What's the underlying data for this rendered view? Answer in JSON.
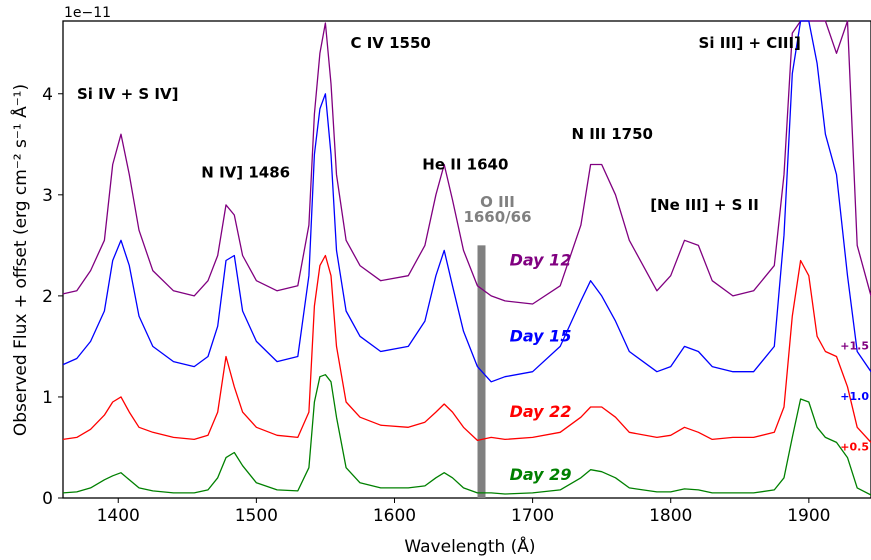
{
  "chart_data": {
    "type": "line",
    "xlabel": "Wavelength (Å)",
    "ylabel": "Observed Flux + offset (erg cm⁻² s⁻¹ Å⁻¹)",
    "y_scale_note": "1e−11",
    "xlim": [
      1360,
      1945
    ],
    "ylim": [
      0,
      4.72
    ],
    "xticks": [
      1400,
      1500,
      1600,
      1700,
      1800,
      1900
    ],
    "yticks": [
      0,
      1,
      2,
      3,
      4
    ],
    "grid": false,
    "series": [
      {
        "name": "Day 12",
        "color": "#800080",
        "offset_label": "+1.5",
        "x": [
          1360,
          1370,
          1380,
          1390,
          1396,
          1402,
          1408,
          1415,
          1425,
          1440,
          1455,
          1465,
          1472,
          1478,
          1484,
          1490,
          1500,
          1515,
          1530,
          1538,
          1542,
          1546,
          1550,
          1554,
          1558,
          1565,
          1575,
          1590,
          1610,
          1622,
          1630,
          1636,
          1642,
          1650,
          1660,
          1670,
          1680,
          1700,
          1720,
          1735,
          1742,
          1750,
          1760,
          1770,
          1790,
          1800,
          1810,
          1820,
          1830,
          1845,
          1860,
          1875,
          1882,
          1888,
          1894,
          1900,
          1906,
          1912,
          1920,
          1928,
          1935,
          1945
        ],
        "y": [
          2.02,
          2.05,
          2.25,
          2.55,
          3.3,
          3.6,
          3.2,
          2.65,
          2.25,
          2.05,
          2.0,
          2.15,
          2.4,
          2.9,
          2.8,
          2.4,
          2.15,
          2.05,
          2.1,
          2.7,
          3.8,
          4.4,
          4.7,
          4.1,
          3.2,
          2.55,
          2.3,
          2.15,
          2.2,
          2.5,
          3.0,
          3.3,
          2.95,
          2.45,
          2.1,
          2.0,
          1.95,
          1.92,
          2.1,
          2.7,
          3.3,
          3.3,
          3.0,
          2.55,
          2.05,
          2.2,
          2.55,
          2.5,
          2.15,
          2.0,
          2.05,
          2.3,
          3.2,
          4.6,
          4.72,
          4.72,
          4.72,
          4.72,
          4.4,
          4.72,
          2.5,
          2.0
        ]
      },
      {
        "name": "Day 15",
        "color": "#0000ff",
        "offset_label": "+1.0",
        "x": [
          1360,
          1370,
          1380,
          1390,
          1396,
          1402,
          1408,
          1415,
          1425,
          1440,
          1455,
          1465,
          1472,
          1478,
          1484,
          1490,
          1500,
          1515,
          1530,
          1538,
          1542,
          1546,
          1550,
          1554,
          1558,
          1565,
          1575,
          1590,
          1610,
          1622,
          1630,
          1636,
          1642,
          1650,
          1660,
          1670,
          1680,
          1700,
          1720,
          1735,
          1742,
          1750,
          1760,
          1770,
          1790,
          1800,
          1810,
          1820,
          1830,
          1845,
          1860,
          1875,
          1882,
          1888,
          1894,
          1900,
          1906,
          1912,
          1920,
          1928,
          1935,
          1945
        ],
        "y": [
          1.32,
          1.38,
          1.55,
          1.85,
          2.35,
          2.55,
          2.3,
          1.8,
          1.5,
          1.35,
          1.3,
          1.4,
          1.7,
          2.35,
          2.4,
          1.85,
          1.55,
          1.35,
          1.4,
          2.2,
          3.4,
          3.85,
          4.0,
          3.4,
          2.45,
          1.85,
          1.6,
          1.45,
          1.5,
          1.75,
          2.2,
          2.45,
          2.1,
          1.65,
          1.3,
          1.15,
          1.2,
          1.25,
          1.5,
          1.95,
          2.15,
          2.0,
          1.75,
          1.45,
          1.25,
          1.3,
          1.5,
          1.45,
          1.3,
          1.25,
          1.25,
          1.5,
          2.6,
          4.2,
          4.72,
          4.72,
          4.3,
          3.6,
          3.2,
          2.2,
          1.45,
          1.25
        ]
      },
      {
        "name": "Day 22",
        "color": "#ff0000",
        "offset_label": "+0.5",
        "x": [
          1360,
          1370,
          1380,
          1390,
          1396,
          1402,
          1408,
          1415,
          1425,
          1440,
          1455,
          1465,
          1472,
          1478,
          1484,
          1490,
          1500,
          1515,
          1530,
          1538,
          1542,
          1546,
          1550,
          1554,
          1558,
          1565,
          1575,
          1590,
          1610,
          1622,
          1630,
          1636,
          1642,
          1650,
          1660,
          1670,
          1680,
          1700,
          1720,
          1735,
          1742,
          1750,
          1760,
          1770,
          1790,
          1800,
          1810,
          1820,
          1830,
          1845,
          1860,
          1875,
          1882,
          1888,
          1894,
          1900,
          1906,
          1912,
          1920,
          1928,
          1935,
          1945
        ],
        "y": [
          0.58,
          0.6,
          0.68,
          0.82,
          0.95,
          1.0,
          0.85,
          0.7,
          0.65,
          0.6,
          0.58,
          0.62,
          0.85,
          1.4,
          1.1,
          0.85,
          0.7,
          0.62,
          0.6,
          0.85,
          1.9,
          2.3,
          2.4,
          2.2,
          1.5,
          0.95,
          0.8,
          0.72,
          0.7,
          0.75,
          0.85,
          0.93,
          0.85,
          0.7,
          0.57,
          0.6,
          0.58,
          0.6,
          0.65,
          0.8,
          0.9,
          0.9,
          0.8,
          0.65,
          0.6,
          0.62,
          0.7,
          0.65,
          0.58,
          0.6,
          0.6,
          0.65,
          0.9,
          1.8,
          2.35,
          2.2,
          1.6,
          1.45,
          1.4,
          1.1,
          0.7,
          0.55
        ]
      },
      {
        "name": "Day 29",
        "color": "#008000",
        "offset_label": "",
        "x": [
          1360,
          1370,
          1380,
          1390,
          1396,
          1402,
          1408,
          1415,
          1425,
          1440,
          1455,
          1465,
          1472,
          1478,
          1484,
          1490,
          1500,
          1515,
          1530,
          1538,
          1542,
          1546,
          1550,
          1554,
          1558,
          1565,
          1575,
          1590,
          1610,
          1622,
          1630,
          1636,
          1642,
          1650,
          1660,
          1670,
          1680,
          1700,
          1720,
          1735,
          1742,
          1750,
          1760,
          1770,
          1790,
          1800,
          1810,
          1820,
          1830,
          1845,
          1860,
          1875,
          1882,
          1888,
          1894,
          1900,
          1906,
          1912,
          1920,
          1928,
          1935,
          1945
        ],
        "y": [
          0.05,
          0.06,
          0.1,
          0.18,
          0.22,
          0.25,
          0.18,
          0.1,
          0.07,
          0.05,
          0.05,
          0.08,
          0.2,
          0.4,
          0.45,
          0.32,
          0.15,
          0.08,
          0.07,
          0.3,
          0.95,
          1.2,
          1.22,
          1.15,
          0.8,
          0.3,
          0.15,
          0.1,
          0.1,
          0.12,
          0.2,
          0.25,
          0.2,
          0.1,
          0.05,
          0.05,
          0.04,
          0.05,
          0.08,
          0.2,
          0.28,
          0.26,
          0.2,
          0.1,
          0.06,
          0.06,
          0.09,
          0.08,
          0.05,
          0.05,
          0.05,
          0.08,
          0.2,
          0.6,
          0.98,
          0.95,
          0.7,
          0.6,
          0.55,
          0.4,
          0.1,
          0.03
        ]
      }
    ],
    "annotations": [
      {
        "text": "Si IV + S IV]",
        "x": 1360,
        "y": 4.0
      },
      {
        "text": "N IV] 1486",
        "x": 1450,
        "y": 3.22
      },
      {
        "text": "C IV 1550",
        "x": 1558,
        "y": 4.5
      },
      {
        "text": "He II 1640",
        "x": 1610,
        "y": 3.3
      },
      {
        "text": "N III 1750",
        "x": 1718,
        "y": 3.6
      },
      {
        "text": "Si III] + CIII]",
        "x": 1810,
        "y": 4.5
      },
      {
        "text": "[Ne III] + S II",
        "x": 1775,
        "y": 2.9
      }
    ],
    "oiii_band": {
      "label_line1": "O III",
      "label_line2": "1660/66",
      "x": 1663,
      "ymin": 0,
      "ymax": 2.5,
      "color": "#808080"
    }
  }
}
